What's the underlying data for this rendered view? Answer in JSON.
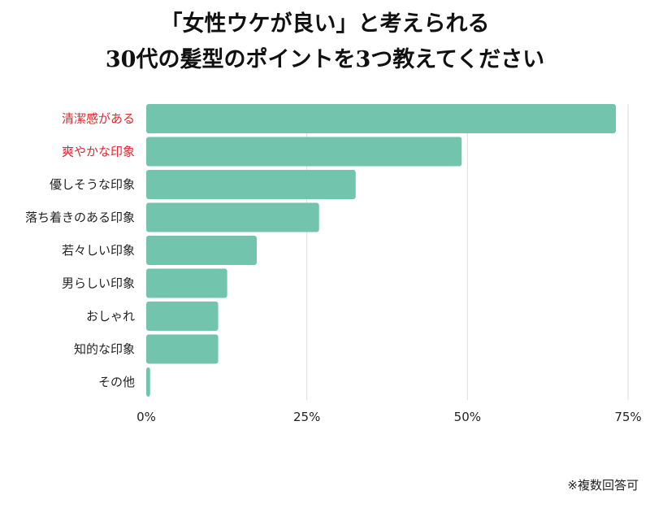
{
  "chart_data": {
    "type": "bar",
    "orientation": "horizontal",
    "title_lines": [
      "「女性ウケが良い」と考えられる",
      "30代の髪型のポイントを3つ教えてください"
    ],
    "categories": [
      "清潔感がある",
      "爽やかな印象",
      "優しそうな印象",
      "落ち着きのある印象",
      "若々しい印象",
      "男らしい印象",
      "おしゃれ",
      "知的な印象",
      "その他"
    ],
    "values": [
      73.1,
      49.1,
      32.6,
      26.9,
      17.2,
      12.6,
      11.2,
      11.2,
      0.6
    ],
    "highlighted": [
      0,
      1
    ],
    "xlim": [
      0,
      75
    ],
    "xticks": [
      "0%",
      "25%",
      "50%",
      "75%"
    ],
    "grid": true,
    "colors": {
      "bar": "#72c4ad",
      "highlight_label": "#e0282e",
      "label": "#222222",
      "grid": "#dddddd"
    },
    "note": "※複数回答可"
  }
}
